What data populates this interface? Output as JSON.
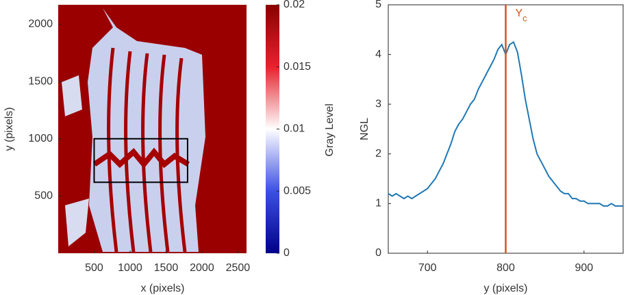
{
  "chart_data": [
    {
      "type": "heatmap",
      "xlabel": "x (pixels)",
      "ylabel": "y (pixels)",
      "xlim": [
        0,
        2620
      ],
      "ylim": [
        0,
        2170
      ],
      "xticks": [
        500,
        1000,
        1500,
        2000,
        2500
      ],
      "yticks": [
        500,
        1000,
        1500,
        2000
      ],
      "colorbar": {
        "label": "Gray Level",
        "lim": [
          0,
          0.02
        ],
        "ticks": [
          0,
          0.005,
          0.01,
          0.015,
          0.02
        ]
      },
      "box": {
        "x": [
          500,
          1800
        ],
        "y": [
          620,
          1000
        ]
      }
    },
    {
      "type": "line",
      "xlabel": "y (pixels)",
      "ylabel": "NGL",
      "xlim": [
        650,
        950
      ],
      "ylim": [
        0,
        5
      ],
      "xticks": [
        700,
        800,
        900
      ],
      "yticks": [
        0,
        1,
        2,
        3,
        4,
        5
      ],
      "color": "#1f77b4",
      "x": [
        650,
        655,
        660,
        665,
        670,
        675,
        680,
        685,
        690,
        695,
        700,
        705,
        710,
        715,
        720,
        725,
        730,
        735,
        740,
        745,
        750,
        755,
        760,
        765,
        770,
        775,
        780,
        785,
        790,
        795,
        800,
        805,
        810,
        815,
        820,
        825,
        830,
        835,
        840,
        845,
        850,
        855,
        860,
        865,
        870,
        875,
        880,
        885,
        890,
        895,
        900,
        905,
        910,
        915,
        920,
        925,
        930,
        935,
        940,
        945,
        950
      ],
      "values": [
        1.2,
        1.15,
        1.2,
        1.15,
        1.1,
        1.15,
        1.1,
        1.15,
        1.2,
        1.25,
        1.3,
        1.4,
        1.5,
        1.65,
        1.8,
        2.0,
        2.2,
        2.45,
        2.6,
        2.7,
        2.85,
        3.0,
        3.1,
        3.3,
        3.45,
        3.6,
        3.75,
        3.9,
        4.1,
        4.2,
        4.0,
        4.2,
        4.25,
        4.05,
        3.6,
        3.1,
        2.7,
        2.3,
        2.0,
        1.85,
        1.7,
        1.55,
        1.45,
        1.35,
        1.25,
        1.2,
        1.2,
        1.1,
        1.1,
        1.05,
        1.05,
        1.0,
        1.0,
        1.0,
        1.0,
        0.95,
        0.95,
        1.0,
        0.95,
        0.95,
        0.95
      ],
      "vline": {
        "x": 800,
        "label": "Y",
        "subscript": "c",
        "color": "#d95319"
      }
    }
  ]
}
